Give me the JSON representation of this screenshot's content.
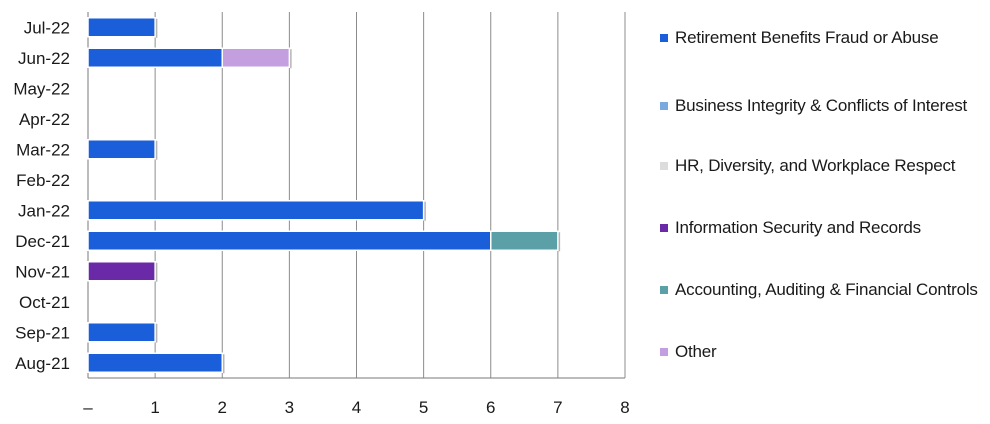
{
  "chart_data": {
    "type": "bar",
    "orientation": "horizontal",
    "stacked": true,
    "categories": [
      "Aug-21",
      "Sep-21",
      "Oct-21",
      "Nov-21",
      "Dec-21",
      "Jan-22",
      "Feb-22",
      "Mar-22",
      "Apr-22",
      "May-22",
      "Jun-22",
      "Jul-22"
    ],
    "series": [
      {
        "name": "Retirement Benefits Fraud or Abuse",
        "color": "#1a5fd9",
        "values": [
          2,
          1,
          0,
          0,
          6,
          5,
          0,
          1,
          0,
          0,
          2,
          1
        ]
      },
      {
        "name": "Business Integrity & Conflicts of Interest",
        "color": "#7aa9e0",
        "values": [
          0,
          0,
          0,
          0,
          0,
          0,
          0,
          0,
          0,
          0,
          0,
          0
        ]
      },
      {
        "name": "HR, Diversity, and Workplace Respect",
        "color": "#dcdcdc",
        "values": [
          0,
          0,
          0,
          0,
          0,
          0,
          0,
          0,
          0,
          0,
          0,
          0
        ]
      },
      {
        "name": "Information Security and Records",
        "color": "#6a2aa8",
        "values": [
          0,
          0,
          0,
          1,
          0,
          0,
          0,
          0,
          0,
          0,
          0,
          0
        ]
      },
      {
        "name": "Accounting, Auditing & Financial Controls",
        "color": "#5aa0a6",
        "values": [
          0,
          0,
          0,
          0,
          1,
          0,
          0,
          0,
          0,
          0,
          0,
          0
        ]
      },
      {
        "name": "Other",
        "color": "#c39fe0",
        "values": [
          0,
          0,
          0,
          0,
          0,
          0,
          0,
          0,
          0,
          0,
          1,
          0
        ]
      }
    ],
    "xlim": [
      0,
      8
    ],
    "xticks": [
      "–",
      "1",
      "2",
      "3",
      "4",
      "5",
      "6",
      "7",
      "8"
    ],
    "grid": "vertical",
    "legend": "right"
  }
}
